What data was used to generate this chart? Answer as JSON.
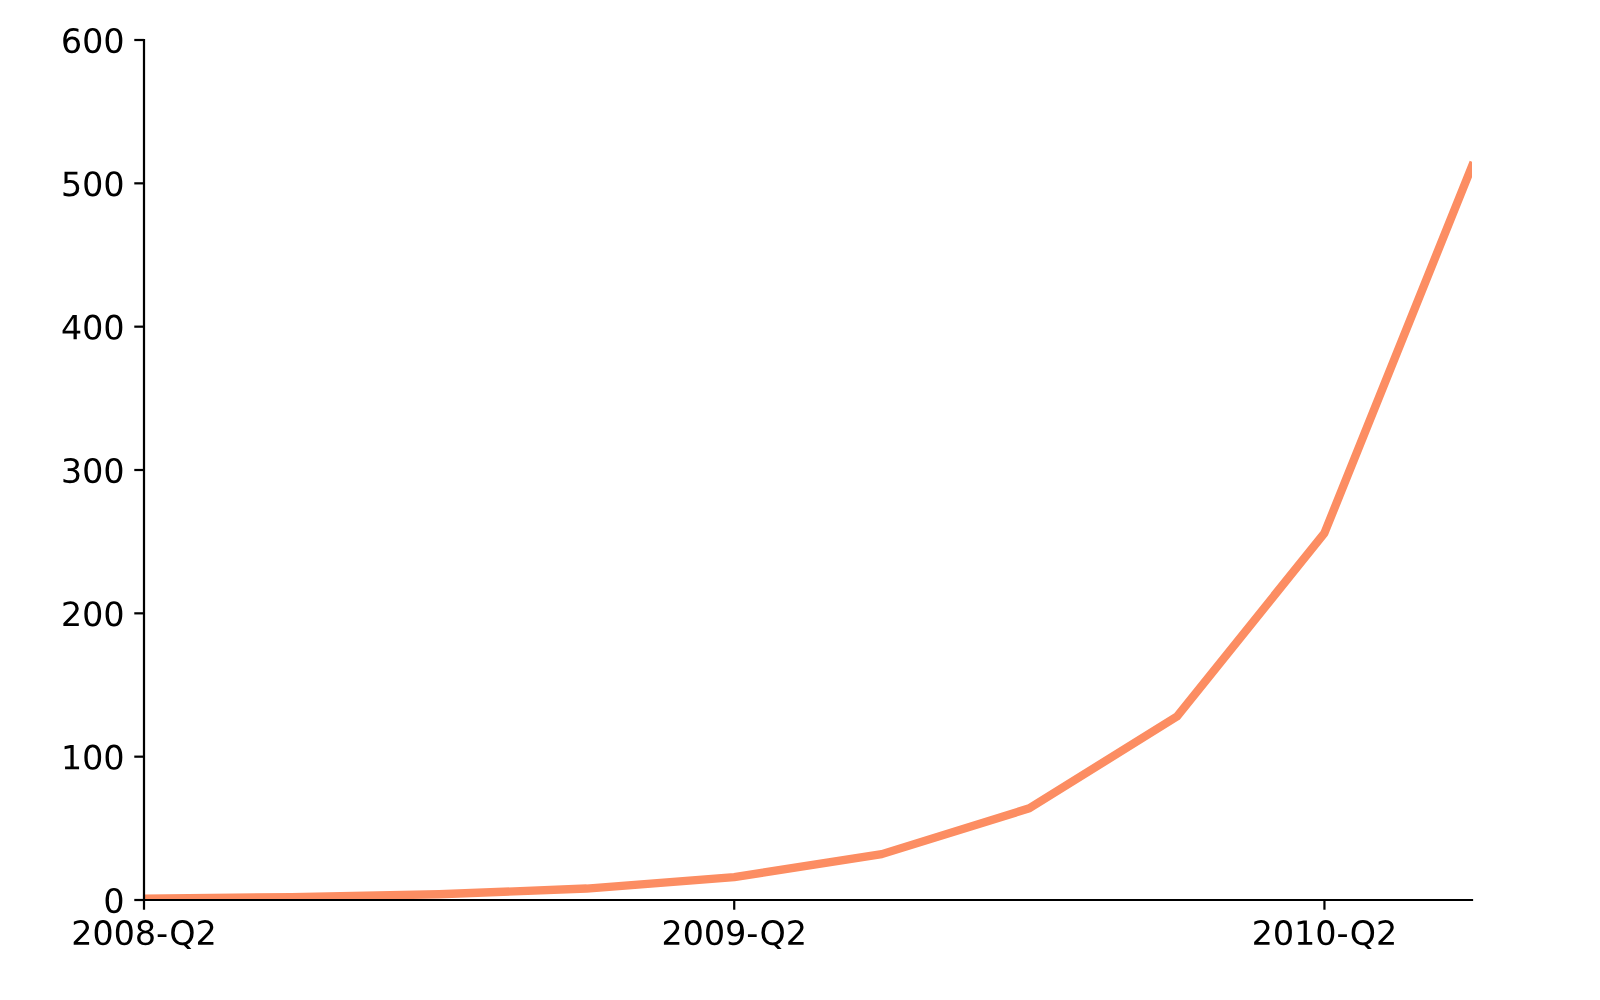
{
  "chart_data": {
    "type": "line",
    "categories": [
      "2008-Q2",
      null,
      null,
      null,
      "2009-Q2",
      null,
      null,
      null,
      "2010-Q2",
      null
    ],
    "series": [
      {
        "color": "#fc8d62",
        "values": [
          1,
          2,
          4,
          8,
          16,
          32,
          64,
          128,
          256,
          512
        ]
      }
    ],
    "ylim": [
      0,
      600
    ],
    "yticks": [
      0,
      100,
      200,
      300,
      400,
      500,
      600
    ],
    "grid": false,
    "legend": false,
    "marker": "none",
    "line_style": "solid"
  }
}
